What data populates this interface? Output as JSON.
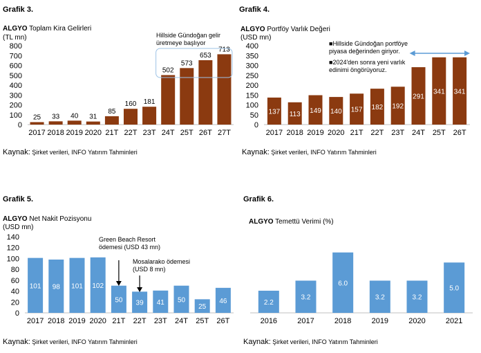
{
  "charts": [
    {
      "id": "g3",
      "grafik": "Grafik 3.",
      "brand": "ALGYO",
      "title": "Toplam Kira Gelirleri",
      "unit": "(TL mn)",
      "kaynak_prefix": "Kaynak:",
      "kaynak_text": " Şirket verileri, INFO Yatırım Tahminleri",
      "annotation": "Hillside Gündoğan gelir üretmeye başlıyor"
    },
    {
      "id": "g4",
      "grafik": "Grafik 4.",
      "brand": "ALGYO",
      "title": "Portföy Varlık Değeri",
      "unit": "(USD mn)",
      "kaynak_prefix": "Kaynak:",
      "kaynak_text": " Şirket verileri, INFO Yatırım Tahminleri",
      "note1": "Hillside Gündoğan portföye piyasa değerinden giriyor.",
      "note2": "2024'den sonra yeni varlık edinimi öngörüyoruz."
    },
    {
      "id": "g5",
      "grafik": "Grafik 5.",
      "brand": "ALGYO",
      "title": "Net Nakit Pozisyonu",
      "unit": "(USD mn)",
      "kaynak_prefix": "Kaynak:",
      "kaynak_text": " Şirket verileri, INFO Yatırım Tahminleri",
      "ann1": "Green Beach Resort ödemesi (USD 43 mn)",
      "ann2": "Mosalarako ödemesi (USD 8 mn)"
    },
    {
      "id": "g6",
      "grafik": "Grafik 6.",
      "brand": "ALGYO",
      "title": "Temettü Verimi  (%)",
      "kaynak_prefix": "Kaynak:",
      "kaynak_text": " Şirket verileri, INFO Yatırım Tahminleri"
    }
  ],
  "colors": {
    "brown": "#8B3A10",
    "blue": "#5B9BD5",
    "arrow": "#5B9BD5"
  },
  "chart_data": [
    {
      "type": "bar",
      "categories": [
        "2017",
        "2018",
        "2019",
        "2020",
        "21T",
        "22T",
        "23T",
        "24T",
        "25T",
        "26T",
        "27T"
      ],
      "values": [
        25,
        33,
        40,
        31,
        85,
        160,
        181,
        502,
        573,
        653,
        713
      ],
      "title": "Toplam Kira Gelirleri",
      "ylabel": "(TL mn)",
      "ylim": [
        0,
        800
      ],
      "yticks": [
        0,
        100,
        200,
        300,
        400,
        500,
        600,
        700,
        800
      ],
      "grid": false,
      "color": "#8B3A10",
      "label_position": "above"
    },
    {
      "type": "bar",
      "categories": [
        "2017",
        "2018",
        "2019",
        "2020",
        "21T",
        "22T",
        "23T",
        "24T",
        "25T",
        "26T"
      ],
      "values": [
        137,
        113,
        149,
        140,
        157,
        182,
        192,
        291,
        341,
        341
      ],
      "title": "Portföy Varlık Değeri",
      "ylabel": "(USD mn)",
      "ylim": [
        0,
        400
      ],
      "yticks": [
        0,
        50,
        100,
        150,
        200,
        250,
        300,
        350,
        400
      ],
      "grid": false,
      "color": "#8B3A10",
      "label_position": "inside"
    },
    {
      "type": "bar",
      "categories": [
        "2017",
        "2018",
        "2019",
        "2020",
        "21T",
        "22T",
        "23T",
        "24T",
        "25T",
        "26T"
      ],
      "values": [
        101,
        98,
        101,
        102,
        50,
        39,
        41,
        50,
        25,
        46
      ],
      "title": "Net Nakit Pozisyonu",
      "ylabel": "(USD mn)",
      "ylim": [
        0,
        140
      ],
      "yticks": [
        0,
        20,
        40,
        60,
        80,
        100,
        120,
        140
      ],
      "grid": false,
      "color": "#5B9BD5",
      "label_position": "inside"
    },
    {
      "type": "bar",
      "categories": [
        "2016",
        "2017",
        "2018",
        "2019",
        "2020",
        "2021"
      ],
      "values": [
        2.2,
        3.2,
        6.0,
        3.2,
        3.2,
        5.0
      ],
      "value_labels": [
        "2.2",
        "3.2",
        "6.0",
        "3.2",
        "3.2",
        "5.0"
      ],
      "title": "Temettü Verimi  (%)",
      "ylim": [
        0,
        6.6
      ],
      "grid": false,
      "color": "#5B9BD5",
      "label_position": "inside"
    }
  ]
}
